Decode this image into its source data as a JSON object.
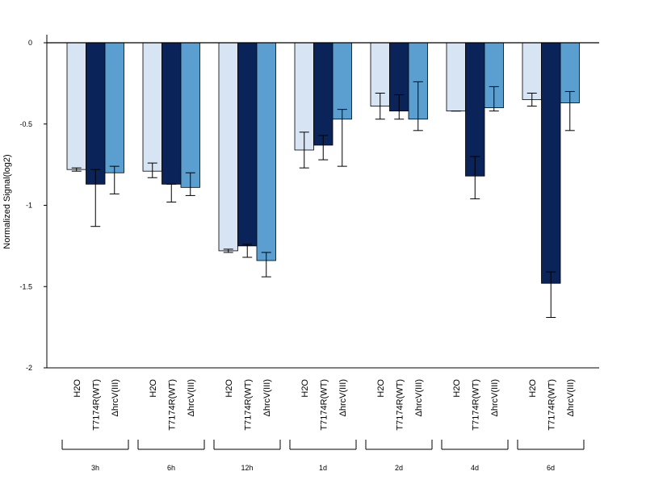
{
  "chart_data": {
    "type": "bar",
    "ylabel": "Normalized Signal(log2)",
    "ylim": [
      -2,
      0
    ],
    "yticks": [
      0,
      -0.5,
      -1,
      -1.5,
      -2
    ],
    "ytick_labels": [
      "0",
      "-0.5",
      "-1",
      "-1.5",
      "-2"
    ],
    "groups": [
      "3h",
      "6h",
      "12h",
      "1d",
      "2d",
      "4d",
      "6d"
    ],
    "bar_labels": [
      "H2O",
      "T7174R(WT)",
      "ΔhrcV(III)"
    ],
    "series": [
      {
        "color": "#d6e4f4",
        "values": [
          -0.78,
          -0.79,
          -1.28,
          -0.66,
          -0.39,
          -0.42,
          -0.35
        ],
        "err_low": [
          -0.79,
          -0.83,
          -1.29,
          -0.77,
          -0.47,
          -0.42,
          -0.39
        ],
        "err_high": [
          -0.77,
          -0.74,
          -1.27,
          -0.55,
          -0.31,
          -0.42,
          -0.31
        ]
      },
      {
        "color": "#0a2358",
        "values": [
          -0.87,
          -0.87,
          -1.25,
          -0.63,
          -0.42,
          -0.82,
          -1.48
        ],
        "err_low": [
          -1.13,
          -0.98,
          -1.32,
          -0.72,
          -0.47,
          -0.96,
          -1.69
        ],
        "err_high": [
          -0.78,
          -0.87,
          -1.24,
          -0.57,
          -0.32,
          -0.7,
          -1.41
        ]
      },
      {
        "color": "#5a9fd0",
        "values": [
          -0.8,
          -0.89,
          -1.34,
          -0.47,
          -0.47,
          -0.4,
          -0.37
        ],
        "err_low": [
          -0.93,
          -0.94,
          -1.44,
          -0.76,
          -0.54,
          -0.42,
          -0.54
        ],
        "err_high": [
          -0.76,
          -0.8,
          -1.29,
          -0.41,
          -0.24,
          -0.27,
          -0.3
        ]
      }
    ]
  }
}
